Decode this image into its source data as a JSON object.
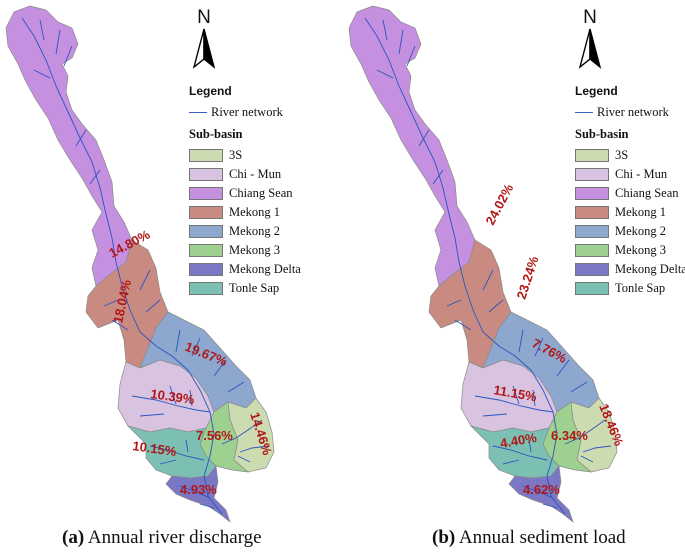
{
  "legend": {
    "title": "Legend",
    "river_label": "River network",
    "subbasin_title": "Sub-basin",
    "items": [
      {
        "label": "3S",
        "color": "#cddbb0"
      },
      {
        "label": "Chi - Mun",
        "color": "#d8c3e1"
      },
      {
        "label": "Chiang Sean",
        "color": "#c690e0"
      },
      {
        "label": "Mekong 1",
        "color": "#c98a82"
      },
      {
        "label": "Mekong 2",
        "color": "#8ea7cf"
      },
      {
        "label": "Mekong 3",
        "color": "#9ed18f"
      },
      {
        "label": "Mekong Delta",
        "color": "#7a78c4"
      },
      {
        "label": "Tonle Sap",
        "color": "#7bc0b3"
      }
    ]
  },
  "north_arrow": {
    "letter": "N",
    "icon": "north-arrow-icon"
  },
  "panels": [
    {
      "caption_tag": "(a)",
      "caption_text": " Annual river discharge",
      "labels": {
        "chiang_sean": "14.80%",
        "mekong_1": "18.04%",
        "mekong_2": "19.67%",
        "chi_mun": "10.39%",
        "three_s": "14.46%",
        "mekong_3": "7.56%",
        "tonle_sap": "10.15%",
        "mekong_delta": "4.93%"
      }
    },
    {
      "caption_tag": "(b)",
      "caption_text": " Annual sediment load",
      "labels": {
        "chiang_sean": "24.02%",
        "mekong_1": "23.24%",
        "mekong_2": "7.76%",
        "chi_mun": "11.15%",
        "three_s": "18.46%",
        "mekong_3": "6.34%",
        "tonle_sap": "4.40%",
        "mekong_delta": "4.62%"
      }
    }
  ]
}
